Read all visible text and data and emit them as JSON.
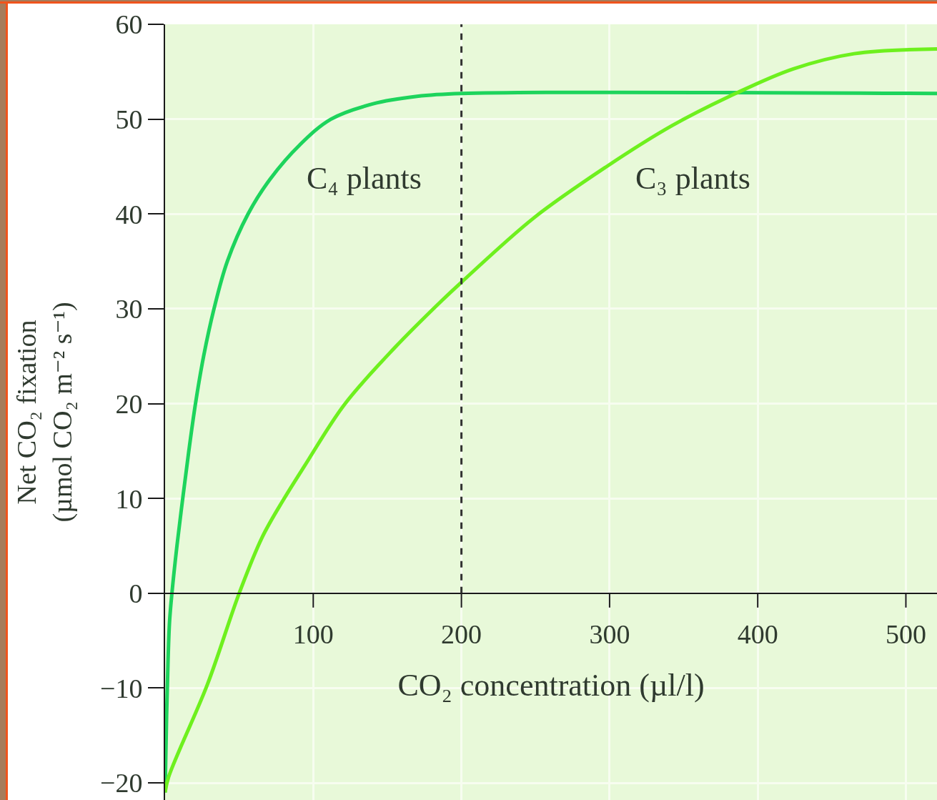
{
  "chart_data": {
    "type": "line",
    "xlabel": "CO₂ concentration (µl/l)",
    "ylabel": "Net CO₂ fixation\n(µmol CO₂ m⁻² s⁻¹)",
    "series": [
      {
        "color": "#1dd45c",
        "x": [
          0,
          1,
          2,
          3,
          4.6,
          8,
          11.9,
          16,
          20.5,
          26,
          33,
          42,
          56,
          71,
          91,
          112,
          140,
          170,
          200,
          521
        ],
        "values": [
          -21,
          -13,
          -7,
          -3,
          0,
          5,
          10,
          15,
          20,
          25,
          30,
          35,
          40,
          43.7,
          47.3,
          50,
          51.6,
          52.4,
          52.7,
          52.7
        ]
      },
      {
        "color": "#6ef01e",
        "x": [
          0,
          2.3,
          28.6,
          50,
          65.5,
          80,
          94,
          121,
          155,
          187,
          200,
          249,
          298,
          342,
          385,
          424,
          465,
          521
        ],
        "values": [
          -21,
          -19.4,
          -9.6,
          0,
          5.9,
          9.9,
          13.4,
          19.9,
          25.9,
          30.9,
          32.8,
          39.6,
          45,
          49.3,
          52.7,
          55.3,
          56.9,
          57.4
        ]
      }
    ],
    "xlim": [
      0,
      521
    ],
    "xticks": [
      100,
      200,
      300,
      400,
      500
    ],
    "ylim": [
      -21.8,
      60
    ],
    "yticks": [
      -20,
      -10,
      0,
      10,
      20,
      30,
      40,
      50,
      60
    ],
    "grid": true,
    "ref_lines": [
      {
        "axis": "x",
        "value": 200,
        "color": "#333333",
        "line_style": "dashed"
      }
    ],
    "annotations": [
      "C₄ plants",
      "C₃ plants"
    ]
  }
}
